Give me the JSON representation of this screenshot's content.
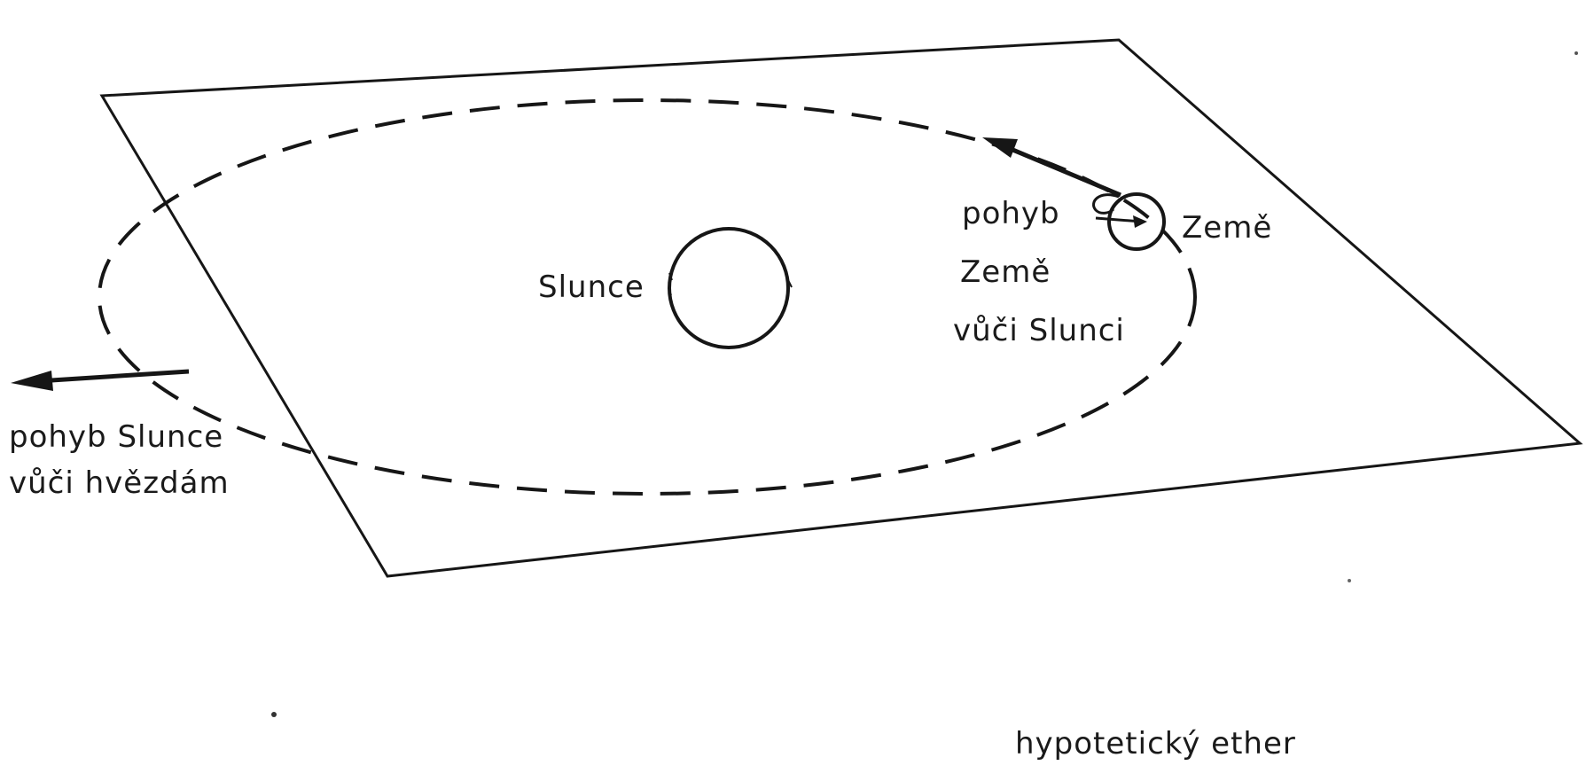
{
  "labels": {
    "sun": "Slunce",
    "earth": "Země",
    "earth_motion_line1": "pohyb",
    "earth_motion_line2": "Země",
    "earth_motion_line3": "vůči Slunci",
    "sun_motion_line1": "pohyb Slunce",
    "sun_motion_line2": "vůči hvězdám",
    "ether": "hypotetický ether"
  }
}
